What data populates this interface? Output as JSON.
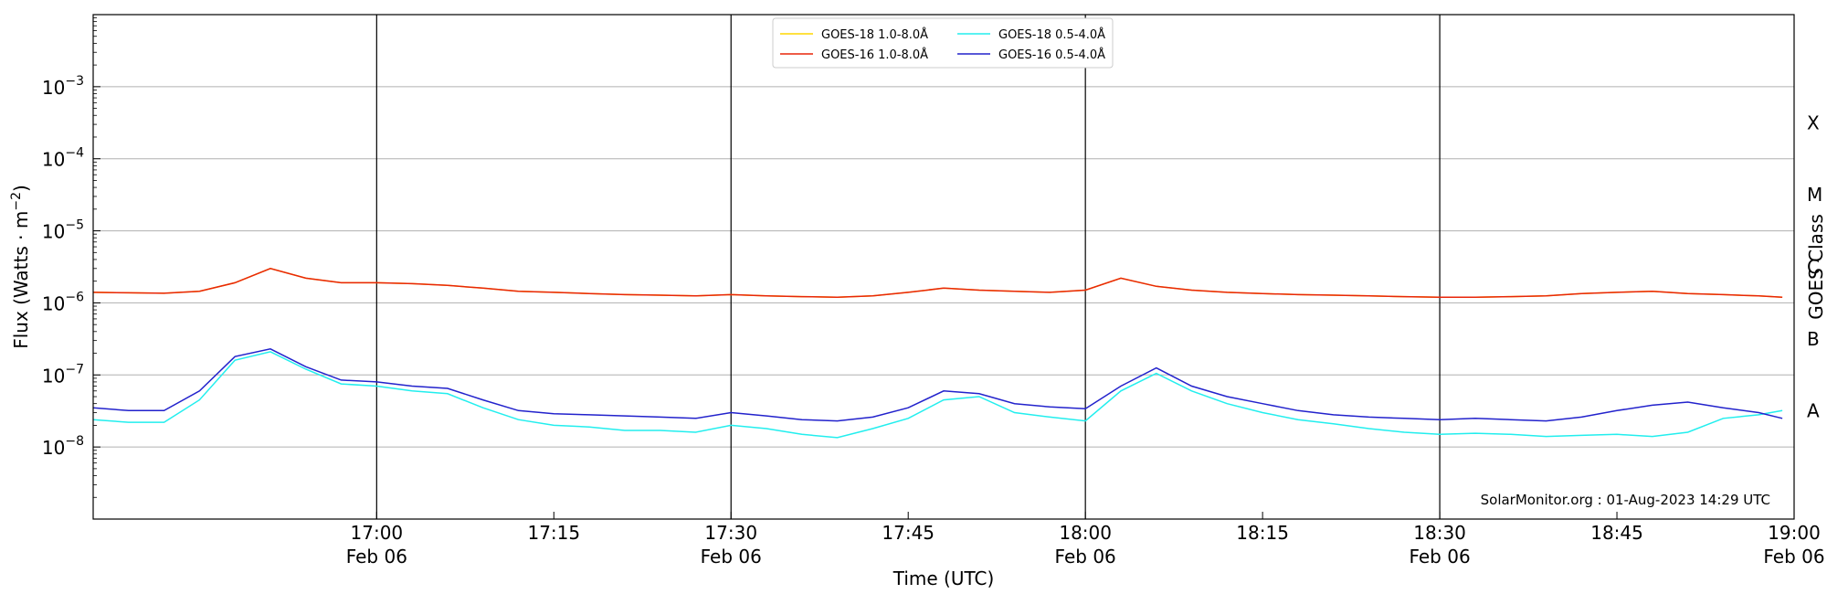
{
  "chart_data": {
    "type": "line",
    "x_start": "17:00",
    "x_end": "19:00",
    "xlim": [
      "16:36",
      "19:00"
    ],
    "ylim": [
      1e-09,
      0.01
    ],
    "yscale": "log",
    "grid": "horizontal at decades",
    "xlabel": "Time (UTC)",
    "ylabel": "Flux (Watts · m",
    "ylabel_exp": "−2",
    "ylabel_close": ")",
    "right_axis_label": "GOES Class",
    "credit": "SolarMonitor.org : 01-Aug-2023 14:29 UTC",
    "legend_position": "top-center",
    "x_ticks": [
      {
        "time": "17:00",
        "label": "17:00",
        "sub": "Feb 06",
        "major": true
      },
      {
        "time": "17:15",
        "label": "17:15",
        "sub": "",
        "major": false
      },
      {
        "time": "17:30",
        "label": "17:30",
        "sub": "Feb 06",
        "major": true
      },
      {
        "time": "17:45",
        "label": "17:45",
        "sub": "",
        "major": false
      },
      {
        "time": "18:00",
        "label": "18:00",
        "sub": "Feb 06",
        "major": true
      },
      {
        "time": "18:15",
        "label": "18:15",
        "sub": "",
        "major": false
      },
      {
        "time": "18:30",
        "label": "18:30",
        "sub": "Feb 06",
        "major": true
      },
      {
        "time": "18:45",
        "label": "18:45",
        "sub": "",
        "major": false
      },
      {
        "time": "19:00",
        "label": "19:00",
        "sub": "Feb 06",
        "major": true
      }
    ],
    "y_ticks": [
      {
        "value": 1e-08,
        "base": "10",
        "exp": "−8"
      },
      {
        "value": 1e-07,
        "base": "10",
        "exp": "−7"
      },
      {
        "value": 1e-06,
        "base": "10",
        "exp": "−6"
      },
      {
        "value": 1e-05,
        "base": "10",
        "exp": "−5"
      },
      {
        "value": 0.0001,
        "base": "10",
        "exp": "−4"
      },
      {
        "value": 0.001,
        "base": "10",
        "exp": "−3"
      }
    ],
    "goes_classes": [
      {
        "label": "A",
        "value": 3.16e-08
      },
      {
        "label": "B",
        "value": 3.16e-07
      },
      {
        "label": "C",
        "value": 3.16e-06
      },
      {
        "label": "M",
        "value": 3.16e-05
      },
      {
        "label": "X",
        "value": 0.000316
      }
    ],
    "x": [
      "16:36",
      "16:39",
      "16:42",
      "16:45",
      "16:48",
      "16:51",
      "16:54",
      "16:57",
      "17:00",
      "17:03",
      "17:06",
      "17:09",
      "17:12",
      "17:15",
      "17:18",
      "17:21",
      "17:24",
      "17:27",
      "17:30",
      "17:33",
      "17:36",
      "17:39",
      "17:42",
      "17:45",
      "17:48",
      "17:51",
      "17:54",
      "17:57",
      "18:00",
      "18:03",
      "18:06",
      "18:09",
      "18:12",
      "18:15",
      "18:18",
      "18:21",
      "18:24",
      "18:27",
      "18:30",
      "18:33",
      "18:36",
      "18:39",
      "18:42",
      "18:45",
      "18:48",
      "18:51",
      "18:54",
      "18:57",
      "18:59"
    ],
    "series": [
      {
        "name": "GOES-18 1.0-8.0Å",
        "color": "#ffd700",
        "values": [
          1.4e-06,
          1.38e-06,
          1.36e-06,
          1.45e-06,
          1.9e-06,
          3e-06,
          2.2e-06,
          1.9e-06,
          1.9e-06,
          1.85e-06,
          1.75e-06,
          1.6e-06,
          1.45e-06,
          1.4e-06,
          1.35e-06,
          1.3e-06,
          1.28e-06,
          1.25e-06,
          1.3e-06,
          1.25e-06,
          1.22e-06,
          1.2e-06,
          1.25e-06,
          1.4e-06,
          1.6e-06,
          1.5e-06,
          1.45e-06,
          1.4e-06,
          1.5e-06,
          2.2e-06,
          1.7e-06,
          1.5e-06,
          1.4e-06,
          1.35e-06,
          1.3e-06,
          1.28e-06,
          1.25e-06,
          1.22e-06,
          1.2e-06,
          1.2e-06,
          1.22e-06,
          1.25e-06,
          1.35e-06,
          1.4e-06,
          1.45e-06,
          1.35e-06,
          1.3e-06,
          1.25e-06,
          1.2e-06
        ]
      },
      {
        "name": "GOES-16 1.0-8.0Å",
        "color": "#e8260a",
        "values": [
          1.4e-06,
          1.38e-06,
          1.36e-06,
          1.45e-06,
          1.9e-06,
          3e-06,
          2.2e-06,
          1.9e-06,
          1.9e-06,
          1.85e-06,
          1.75e-06,
          1.6e-06,
          1.45e-06,
          1.4e-06,
          1.35e-06,
          1.3e-06,
          1.28e-06,
          1.25e-06,
          1.3e-06,
          1.25e-06,
          1.22e-06,
          1.2e-06,
          1.25e-06,
          1.4e-06,
          1.6e-06,
          1.5e-06,
          1.45e-06,
          1.4e-06,
          1.5e-06,
          2.2e-06,
          1.7e-06,
          1.5e-06,
          1.4e-06,
          1.35e-06,
          1.3e-06,
          1.28e-06,
          1.25e-06,
          1.22e-06,
          1.2e-06,
          1.2e-06,
          1.22e-06,
          1.25e-06,
          1.35e-06,
          1.4e-06,
          1.45e-06,
          1.35e-06,
          1.3e-06,
          1.25e-06,
          1.2e-06
        ]
      },
      {
        "name": "GOES-18 0.5-4.0Å",
        "color": "#22eeee",
        "values": [
          2.4e-08,
          2.2e-08,
          2.2e-08,
          4.5e-08,
          1.6e-07,
          2.1e-07,
          1.2e-07,
          7.5e-08,
          7e-08,
          6e-08,
          5.5e-08,
          3.5e-08,
          2.4e-08,
          2e-08,
          1.9e-08,
          1.7e-08,
          1.7e-08,
          1.6e-08,
          2e-08,
          1.8e-08,
          1.5e-08,
          1.35e-08,
          1.8e-08,
          2.5e-08,
          4.5e-08,
          5e-08,
          3e-08,
          2.6e-08,
          2.3e-08,
          6e-08,
          1.05e-07,
          6e-08,
          4e-08,
          3e-08,
          2.4e-08,
          2.1e-08,
          1.8e-08,
          1.6e-08,
          1.5e-08,
          1.55e-08,
          1.5e-08,
          1.4e-08,
          1.45e-08,
          1.5e-08,
          1.4e-08,
          1.6e-08,
          2.5e-08,
          2.8e-08,
          3.2e-08
        ]
      },
      {
        "name": "GOES-16 0.5-4.0Å",
        "color": "#2222cc",
        "values": [
          3.5e-08,
          3.2e-08,
          3.2e-08,
          6e-08,
          1.8e-07,
          2.3e-07,
          1.3e-07,
          8.5e-08,
          8e-08,
          7e-08,
          6.5e-08,
          4.5e-08,
          3.2e-08,
          2.9e-08,
          2.8e-08,
          2.7e-08,
          2.6e-08,
          2.5e-08,
          3e-08,
          2.7e-08,
          2.4e-08,
          2.3e-08,
          2.6e-08,
          3.5e-08,
          6e-08,
          5.5e-08,
          4e-08,
          3.6e-08,
          3.4e-08,
          7e-08,
          1.25e-07,
          7e-08,
          5e-08,
          4e-08,
          3.2e-08,
          2.8e-08,
          2.6e-08,
          2.5e-08,
          2.4e-08,
          2.5e-08,
          2.4e-08,
          2.3e-08,
          2.6e-08,
          3.2e-08,
          3.8e-08,
          4.2e-08,
          3.5e-08,
          3e-08,
          2.5e-08
        ]
      }
    ]
  }
}
